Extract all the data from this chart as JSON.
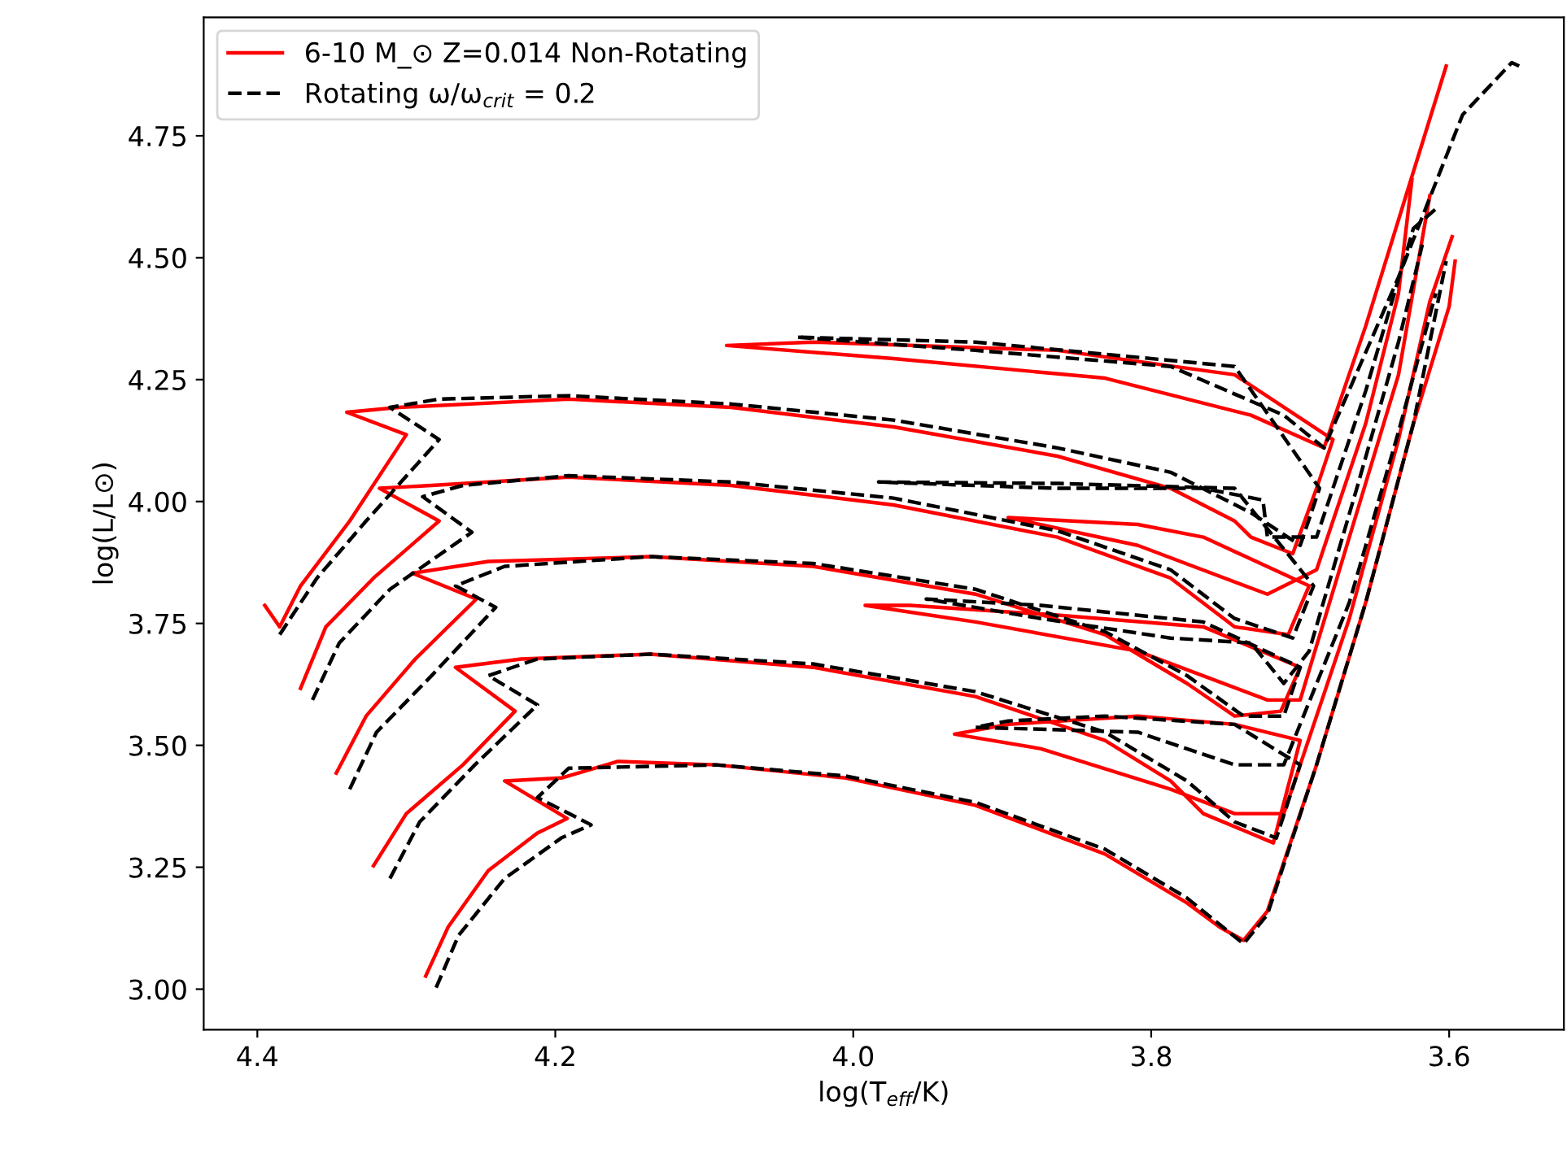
{
  "chart_data": {
    "type": "line",
    "xlabel": "log(T$_{eff}$/K)",
    "ylabel": "log(L/L⊙)",
    "xlim": [
      4.436,
      3.523
    ],
    "ylim": [
      2.917,
      4.993
    ],
    "xticks": [
      4.4,
      4.2,
      {
        "value": 4.0,
        "label": "4.0"
      },
      3.8,
      3.6
    ],
    "yticks": [
      {
        "value": 3.0,
        "label": "3.00"
      },
      3.25,
      {
        "value": 3.5,
        "label": "3.50"
      },
      3.75,
      {
        "value": 4.0,
        "label": "4.00"
      },
      4.25,
      {
        "value": 4.5,
        "label": "4.50"
      },
      4.75
    ],
    "legend": "top left",
    "grid": false,
    "marker": "none",
    "series": [
      {
        "name": "6-10 M_⊙ Z=0.014 Non-Rotating",
        "color": "#ff0000",
        "line_style": "solid",
        "x": [
          4.287,
          4.272,
          4.245,
          4.212,
          4.192,
          4.234,
          4.196,
          4.158,
          4.092,
          4.005,
          3.918,
          3.831,
          3.776,
          3.754,
          3.738,
          3.722,
          3.689,
          3.656,
          3.624,
          3.6,
          3.596
        ],
        "values": [
          3.027,
          3.127,
          3.243,
          3.32,
          3.35,
          3.427,
          3.433,
          3.467,
          3.46,
          3.433,
          3.377,
          3.277,
          3.177,
          3.127,
          3.1,
          3.16,
          3.46,
          3.793,
          4.16,
          4.4,
          4.493
        ]
      },
      {
        "color": "#ff0000",
        "line_style": "solid",
        "x": [
          4.322,
          4.3,
          4.262,
          4.227,
          4.267,
          4.223,
          4.136,
          4.027,
          3.918,
          3.831,
          3.787,
          3.765,
          3.718,
          3.7,
          3.744,
          3.809,
          3.896,
          3.932,
          3.874,
          3.787,
          3.744,
          3.711,
          3.667,
          3.634,
          3.613,
          3.598
        ],
        "values": [
          3.253,
          3.36,
          3.46,
          3.57,
          3.66,
          3.677,
          3.687,
          3.66,
          3.6,
          3.51,
          3.427,
          3.36,
          3.3,
          3.51,
          3.543,
          3.56,
          3.543,
          3.523,
          3.493,
          3.41,
          3.36,
          3.36,
          3.76,
          4.127,
          4.41,
          4.543
        ]
      },
      {
        "color": "#ff0000",
        "line_style": "solid",
        "x": [
          4.347,
          4.327,
          4.294,
          4.253,
          4.296,
          4.245,
          4.136,
          4.027,
          3.918,
          3.831,
          3.776,
          3.744,
          3.713,
          3.7,
          3.765,
          3.863,
          3.962,
          3.992,
          3.918,
          3.809,
          3.722,
          3.7,
          3.667,
          3.634,
          3.613
        ],
        "values": [
          3.443,
          3.56,
          3.677,
          3.8,
          3.853,
          3.877,
          3.887,
          3.867,
          3.81,
          3.727,
          3.627,
          3.56,
          3.57,
          3.66,
          3.743,
          3.767,
          3.787,
          3.787,
          3.753,
          3.693,
          3.593,
          3.593,
          3.927,
          4.26,
          4.627
        ]
      },
      {
        "color": "#ff0000",
        "line_style": "solid",
        "x": [
          4.371,
          4.354,
          4.322,
          4.278,
          4.318,
          4.283,
          4.191,
          4.082,
          3.973,
          3.863,
          3.787,
          3.744,
          3.708,
          3.694,
          3.765,
          3.809,
          3.896,
          3.809,
          3.722,
          3.689,
          3.656,
          3.634,
          3.625
        ],
        "values": [
          3.617,
          3.743,
          3.843,
          3.96,
          4.027,
          4.033,
          4.05,
          4.033,
          3.993,
          3.927,
          3.843,
          3.743,
          3.727,
          3.827,
          3.927,
          3.953,
          3.967,
          3.91,
          3.81,
          3.86,
          4.16,
          4.427,
          4.66
        ]
      },
      {
        "color": "#ff0000",
        "line_style": "solid",
        "x": [
          4.395,
          4.385,
          4.371,
          4.338,
          4.3,
          4.34,
          4.305,
          4.191,
          4.082,
          3.973,
          3.863,
          3.787,
          3.744,
          3.733,
          3.705,
          3.689,
          3.678,
          3.744,
          3.863,
          4.027,
          4.085,
          3.973,
          3.831,
          3.733,
          3.684,
          3.656,
          3.629,
          3.602
        ],
        "values": [
          3.787,
          3.743,
          3.827,
          3.96,
          4.137,
          4.183,
          4.193,
          4.21,
          4.193,
          4.153,
          4.093,
          4.027,
          3.96,
          3.927,
          3.893,
          4.027,
          4.127,
          4.26,
          4.31,
          4.327,
          4.32,
          4.293,
          4.253,
          4.177,
          4.11,
          4.36,
          4.627,
          4.893
        ]
      },
      {
        "name": "Rotating ω/ω$_{crit}$ = 0.2",
        "color": "#000000",
        "line_style": "dashed",
        "x": [
          4.28,
          4.265,
          4.234,
          4.196,
          4.176,
          4.212,
          4.191,
          4.092,
          4.005,
          3.918,
          3.831,
          3.776,
          3.749,
          3.738,
          3.722,
          3.689,
          3.656,
          3.624,
          3.602
        ],
        "values": [
          3.003,
          3.11,
          3.227,
          3.31,
          3.337,
          3.393,
          3.453,
          3.46,
          3.437,
          3.383,
          3.287,
          3.187,
          3.12,
          3.093,
          3.153,
          3.46,
          3.793,
          4.16,
          4.493
        ]
      },
      {
        "color": "#000000",
        "line_style": "dashed",
        "x": [
          4.311,
          4.291,
          4.254,
          4.212,
          4.245,
          4.212,
          4.136,
          4.027,
          3.918,
          3.831,
          3.776,
          3.744,
          3.716,
          3.7,
          3.744,
          3.831,
          3.896,
          3.918,
          3.809,
          3.744,
          3.711,
          3.667,
          3.634,
          3.609
        ],
        "values": [
          3.227,
          3.343,
          3.46,
          3.583,
          3.643,
          3.677,
          3.687,
          3.667,
          3.61,
          3.527,
          3.427,
          3.343,
          3.31,
          3.46,
          3.543,
          3.56,
          3.55,
          3.537,
          3.527,
          3.46,
          3.46,
          3.793,
          4.143,
          4.427
        ]
      },
      {
        "color": "#000000",
        "line_style": "dashed",
        "x": [
          4.338,
          4.32,
          4.283,
          4.24,
          4.267,
          4.234,
          4.136,
          4.027,
          3.918,
          3.831,
          3.776,
          3.738,
          3.711,
          3.7,
          3.765,
          3.874,
          3.951,
          3.874,
          3.787,
          3.733,
          3.711,
          3.694,
          3.662,
          3.634,
          3.618
        ],
        "values": [
          3.41,
          3.527,
          3.643,
          3.783,
          3.827,
          3.867,
          3.887,
          3.873,
          3.82,
          3.733,
          3.643,
          3.56,
          3.56,
          3.66,
          3.753,
          3.787,
          3.8,
          3.76,
          3.72,
          3.71,
          3.627,
          3.693,
          4.027,
          4.327,
          4.527
        ]
      },
      {
        "color": "#000000",
        "line_style": "dashed",
        "x": [
          4.363,
          4.345,
          4.311,
          4.256,
          4.289,
          4.262,
          4.191,
          4.082,
          3.973,
          3.863,
          3.787,
          3.744,
          3.705,
          3.691,
          3.744,
          3.863,
          3.983,
          3.863,
          3.765,
          3.725,
          3.722,
          3.689,
          3.656,
          3.624,
          3.609
        ],
        "values": [
          3.593,
          3.71,
          3.82,
          3.937,
          4.01,
          4.033,
          4.053,
          4.04,
          4.007,
          3.94,
          3.86,
          3.76,
          3.72,
          3.827,
          4.027,
          4.037,
          4.04,
          4.027,
          4.027,
          4.003,
          3.927,
          3.927,
          4.227,
          4.56,
          4.6
        ]
      },
      {
        "color": "#000000",
        "line_style": "dashed",
        "x": [
          4.385,
          4.36,
          4.327,
          4.278,
          4.311,
          4.278,
          4.191,
          4.082,
          3.973,
          3.863,
          3.787,
          3.733,
          3.7,
          3.687,
          3.744,
          3.918,
          4.038,
          3.918,
          3.787,
          3.711,
          3.684,
          3.634,
          3.591,
          3.558,
          3.553
        ],
        "values": [
          3.727,
          3.843,
          3.96,
          4.127,
          4.193,
          4.21,
          4.217,
          4.2,
          4.167,
          4.11,
          4.06,
          3.977,
          3.91,
          4.027,
          4.277,
          4.327,
          4.337,
          4.31,
          4.277,
          4.177,
          4.11,
          4.46,
          4.793,
          4.9,
          4.893
        ]
      }
    ]
  }
}
